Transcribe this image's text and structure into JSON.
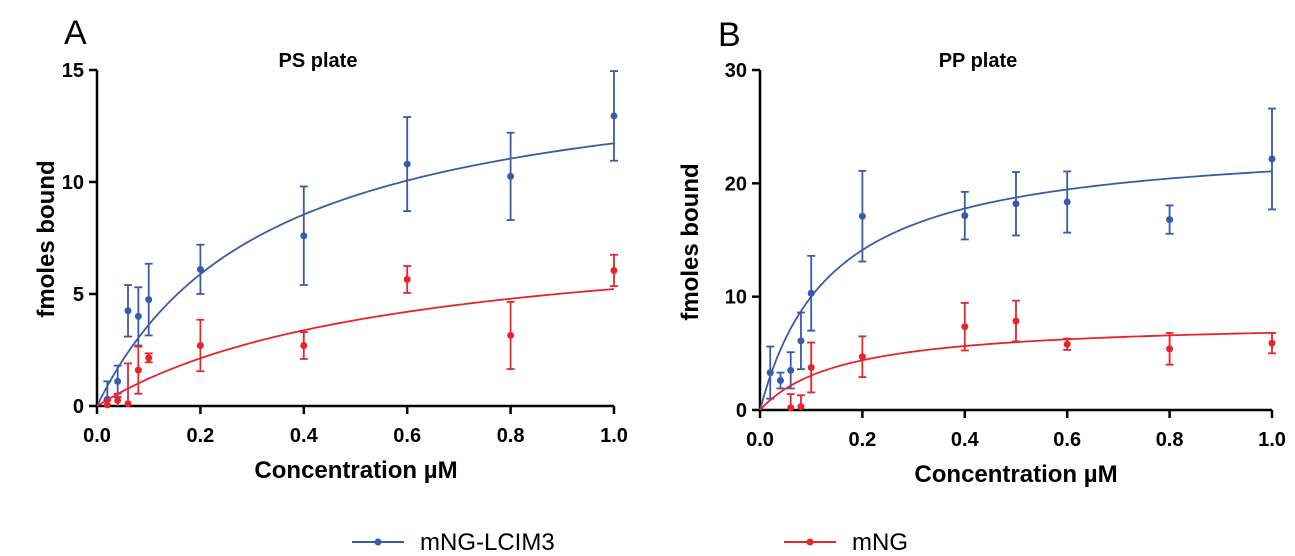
{
  "chart_data": [
    {
      "type": "scatter",
      "panel": "A",
      "title": "PS plate",
      "xlabel": "Concentration µM",
      "ylabel": "fmoles bound",
      "xlim": [
        0,
        1.0
      ],
      "ylim": [
        0,
        15
      ],
      "xticks": [
        0.0,
        0.2,
        0.4,
        0.6,
        0.8,
        1.0
      ],
      "xtick_labels": [
        "0.0",
        "0.2",
        "0.4",
        "0.6",
        "0.8",
        "1.0"
      ],
      "yticks": [
        0,
        5,
        10,
        15
      ],
      "ytick_labels": [
        "0",
        "5",
        "10",
        "15"
      ],
      "grid": false,
      "series": [
        {
          "name": "mNG-LCIM3",
          "color": "#3a5ba9",
          "x": [
            0.02,
            0.04,
            0.06,
            0.08,
            0.1,
            0.2,
            0.4,
            0.6,
            0.8,
            1.0
          ],
          "y": [
            0.3,
            1.1,
            4.25,
            4.0,
            4.75,
            6.1,
            7.6,
            10.8,
            10.25,
            12.95
          ],
          "err": [
            0.8,
            0.7,
            1.15,
            1.3,
            1.6,
            1.1,
            2.2,
            2.1,
            1.95,
            2.0
          ],
          "fit": {
            "model": "one-site binding",
            "bmax": 15.6,
            "kd": 0.33
          }
        },
        {
          "name": "mNG",
          "color": "#e8242b",
          "x": [
            0.02,
            0.04,
            0.06,
            0.08,
            0.1,
            0.2,
            0.4,
            0.6,
            0.8,
            1.0
          ],
          "y": [
            0.05,
            0.25,
            0.1,
            1.6,
            2.15,
            2.7,
            2.7,
            5.65,
            3.15,
            6.05
          ],
          "err": [
            0.2,
            0.3,
            1.8,
            1.05,
            0.2,
            1.15,
            0.6,
            0.6,
            1.5,
            0.7
          ],
          "fit": {
            "model": "one-site binding",
            "bmax": 8.2,
            "kd": 0.57
          }
        }
      ]
    },
    {
      "type": "scatter",
      "panel": "B",
      "title": "PP plate",
      "xlabel": "Concentration µM",
      "ylabel": "fmoles bound",
      "xlim": [
        0,
        1.0
      ],
      "ylim": [
        0,
        30
      ],
      "xticks": [
        0.0,
        0.2,
        0.4,
        0.6,
        0.8,
        1.0
      ],
      "xtick_labels": [
        "0.0",
        "0.2",
        "0.4",
        "0.6",
        "0.8",
        "1.0"
      ],
      "yticks": [
        0,
        10,
        20,
        30
      ],
      "ytick_labels": [
        "0",
        "10",
        "20",
        "30"
      ],
      "grid": false,
      "series": [
        {
          "name": "mNG-LCIM3",
          "color": "#3a5ba9",
          "x": [
            0.02,
            0.04,
            0.06,
            0.08,
            0.1,
            0.2,
            0.4,
            0.5,
            0.6,
            0.8,
            1.0
          ],
          "y": [
            3.3,
            2.6,
            3.5,
            6.1,
            10.3,
            17.1,
            17.15,
            18.2,
            18.35,
            16.8,
            22.15
          ],
          "err": [
            2.3,
            0.7,
            1.6,
            2.5,
            3.3,
            4.0,
            2.1,
            2.8,
            2.7,
            1.25,
            4.45
          ],
          "fit": {
            "model": "one-site binding",
            "bmax": 24.0,
            "kd": 0.14
          }
        },
        {
          "name": "mNG",
          "color": "#e8242b",
          "x": [
            0.06,
            0.08,
            0.1,
            0.2,
            0.4,
            0.5,
            0.6,
            0.8,
            1.0
          ],
          "y": [
            0.2,
            0.3,
            3.75,
            4.7,
            7.35,
            7.85,
            5.8,
            5.4,
            5.9
          ],
          "err": [
            1.2,
            1.0,
            2.2,
            1.8,
            2.1,
            1.8,
            0.5,
            1.4,
            0.9
          ],
          "fit": {
            "model": "one-site binding",
            "bmax": 7.9,
            "kd": 0.16
          }
        }
      ]
    }
  ],
  "legend": {
    "placement": "bottom",
    "items": [
      {
        "label": "mNG-LCIM3",
        "color": "#3a5ba9"
      },
      {
        "label": "mNG",
        "color": "#e8242b"
      }
    ]
  }
}
